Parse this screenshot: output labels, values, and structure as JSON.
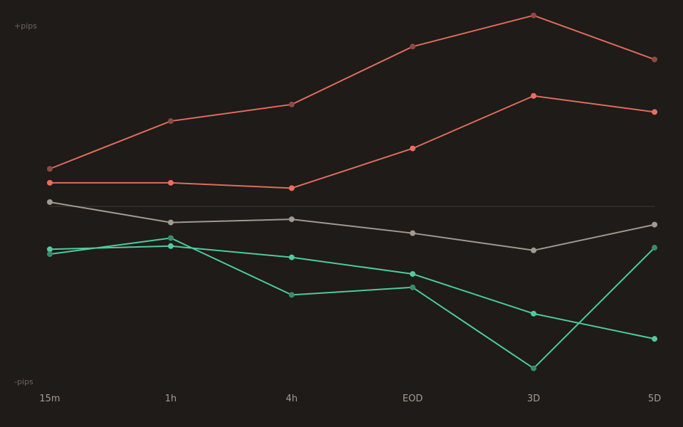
{
  "chart_data": {
    "type": "line",
    "x": [
      "15m",
      "1h",
      "4h",
      "EOD",
      "3D",
      "5D"
    ],
    "y_top_label": "+pips",
    "y_bottom_label": "-pips",
    "ylim": [
      -34.5,
      34.5
    ],
    "baseline": 0,
    "grid": false,
    "legend": "none",
    "series": [
      {
        "color": "#8c4a44",
        "line_color": "#e06b5e",
        "values": [
          7,
          15.9,
          19,
          29.8,
          35.6,
          27.4
        ]
      },
      {
        "color": "#e86e61",
        "line_color": "#e06b5e",
        "values": [
          4.4,
          4.4,
          3.4,
          10.8,
          20.6,
          17.6
        ]
      },
      {
        "color": "#a29990",
        "line_color": "#a29990",
        "values": [
          0.8,
          -3,
          -2.4,
          -5,
          -8.2,
          -3.4
        ]
      },
      {
        "color": "#4ecb9f",
        "line_color": "#4ecb9f",
        "values": [
          -8,
          -7.4,
          -9.5,
          -12.6,
          -20,
          -24.7
        ]
      },
      {
        "color": "#3a8a6c",
        "line_color": "#4ecb9f",
        "values": [
          -8.9,
          -5.9,
          -16.5,
          -15.1,
          -30.2,
          -7.7
        ]
      }
    ],
    "colors": {
      "background": "#1e1b18",
      "baseline": "#35302b",
      "tick_text": "#a59c91",
      "axis_text": "#6e665e"
    }
  }
}
